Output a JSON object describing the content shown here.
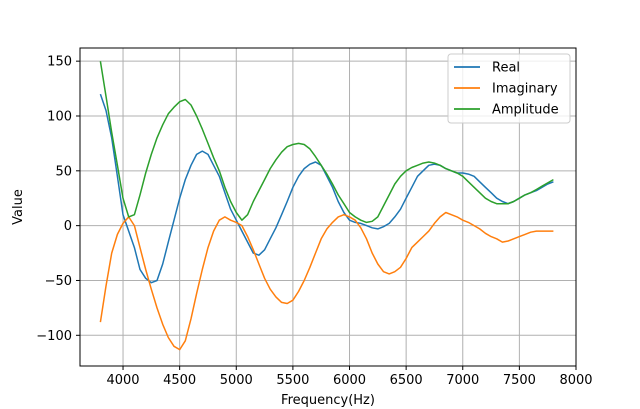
{
  "chart_data": {
    "type": "line",
    "title": "",
    "xlabel": "Frequency(Hz)",
    "ylabel": "Value",
    "xlim": [
      3620,
      8000
    ],
    "ylim": [
      -128,
      162
    ],
    "xticks": [
      4000,
      4500,
      5000,
      5500,
      6000,
      6500,
      7000,
      7500,
      8000
    ],
    "yticks": [
      -100,
      -50,
      0,
      50,
      100,
      150
    ],
    "grid": true,
    "legend_position": "top-right",
    "colors": {
      "Real": "#1f77b4",
      "Imaginary": "#ff7f0e",
      "Amplitude": "#2ca02c"
    },
    "series": [
      {
        "name": "Real",
        "x": [
          3800,
          3850,
          3900,
          3950,
          4000,
          4050,
          4100,
          4150,
          4200,
          4250,
          4300,
          4350,
          4400,
          4450,
          4500,
          4550,
          4600,
          4650,
          4700,
          4750,
          4800,
          4850,
          4900,
          4950,
          5000,
          5050,
          5100,
          5150,
          5200,
          5250,
          5300,
          5350,
          5400,
          5450,
          5500,
          5550,
          5600,
          5650,
          5700,
          5750,
          5800,
          5850,
          5900,
          5950,
          6000,
          6050,
          6100,
          6150,
          6200,
          6250,
          6300,
          6350,
          6400,
          6450,
          6500,
          6550,
          6600,
          6650,
          6700,
          6750,
          6800,
          6850,
          6900,
          6950,
          7000,
          7050,
          7100,
          7150,
          7200,
          7250,
          7300,
          7350,
          7400,
          7450,
          7500,
          7550,
          7600,
          7650,
          7700,
          7750,
          7800
        ],
        "values": [
          120,
          105,
          80,
          45,
          10,
          -5,
          -20,
          -40,
          -48,
          -52,
          -50,
          -35,
          -15,
          5,
          25,
          42,
          55,
          65,
          68,
          65,
          55,
          45,
          30,
          15,
          5,
          -5,
          -15,
          -25,
          -27,
          -22,
          -12,
          -2,
          10,
          22,
          35,
          45,
          52,
          56,
          58,
          55,
          45,
          35,
          22,
          12,
          5,
          3,
          2,
          0,
          -2,
          -3,
          -1,
          2,
          8,
          15,
          25,
          35,
          45,
          50,
          55,
          56,
          55,
          52,
          50,
          48,
          48,
          47,
          45,
          40,
          35,
          30,
          25,
          22,
          20,
          22,
          25,
          28,
          30,
          32,
          35,
          38,
          40
        ]
      },
      {
        "name": "Imaginary",
        "x": [
          3800,
          3850,
          3900,
          3950,
          4000,
          4050,
          4100,
          4150,
          4200,
          4250,
          4300,
          4350,
          4400,
          4450,
          4500,
          4550,
          4600,
          4650,
          4700,
          4750,
          4800,
          4850,
          4900,
          4950,
          5000,
          5050,
          5100,
          5150,
          5200,
          5250,
          5300,
          5350,
          5400,
          5450,
          5500,
          5550,
          5600,
          5650,
          5700,
          5750,
          5800,
          5850,
          5900,
          5950,
          6000,
          6050,
          6100,
          6150,
          6200,
          6250,
          6300,
          6350,
          6400,
          6450,
          6500,
          6550,
          6600,
          6650,
          6700,
          6750,
          6800,
          6850,
          6900,
          6950,
          7000,
          7050,
          7100,
          7150,
          7200,
          7250,
          7300,
          7350,
          7400,
          7450,
          7500,
          7550,
          7600,
          7650,
          7700,
          7750,
          7800
        ],
        "values": [
          -88,
          -55,
          -25,
          -8,
          2,
          8,
          0,
          -20,
          -40,
          -58,
          -75,
          -90,
          -102,
          -110,
          -113,
          -105,
          -85,
          -62,
          -40,
          -20,
          -5,
          5,
          8,
          5,
          3,
          0,
          -10,
          -22,
          -35,
          -48,
          -58,
          -65,
          -70,
          -71,
          -68,
          -60,
          -50,
          -38,
          -25,
          -12,
          -3,
          3,
          8,
          10,
          8,
          5,
          -2,
          -12,
          -25,
          -35,
          -42,
          -44,
          -42,
          -38,
          -30,
          -20,
          -15,
          -10,
          -5,
          2,
          8,
          12,
          10,
          8,
          5,
          3,
          0,
          -3,
          -7,
          -10,
          -12,
          -15,
          -14,
          -12,
          -10,
          -8,
          -6,
          -5,
          -5,
          -5,
          -5
        ]
      },
      {
        "name": "Amplitude",
        "x": [
          3800,
          3850,
          3900,
          3950,
          4000,
          4050,
          4100,
          4150,
          4200,
          4250,
          4300,
          4350,
          4400,
          4450,
          4500,
          4550,
          4600,
          4650,
          4700,
          4750,
          4800,
          4850,
          4900,
          4950,
          5000,
          5050,
          5100,
          5150,
          5200,
          5250,
          5300,
          5350,
          5400,
          5450,
          5500,
          5550,
          5600,
          5650,
          5700,
          5750,
          5800,
          5850,
          5900,
          5950,
          6000,
          6050,
          6100,
          6150,
          6200,
          6250,
          6300,
          6350,
          6400,
          6450,
          6500,
          6550,
          6600,
          6650,
          6700,
          6750,
          6800,
          6850,
          6900,
          6950,
          7000,
          7050,
          7100,
          7150,
          7200,
          7250,
          7300,
          7350,
          7400,
          7450,
          7500,
          7550,
          7600,
          7650,
          7700,
          7750,
          7800
        ],
        "values": [
          150,
          118,
          85,
          55,
          25,
          8,
          10,
          28,
          48,
          65,
          80,
          92,
          102,
          108,
          113,
          115,
          110,
          100,
          88,
          75,
          62,
          50,
          35,
          22,
          12,
          5,
          10,
          22,
          32,
          42,
          52,
          60,
          67,
          72,
          74,
          75,
          74,
          70,
          63,
          55,
          47,
          38,
          28,
          20,
          12,
          8,
          5,
          3,
          4,
          8,
          18,
          28,
          38,
          45,
          50,
          53,
          55,
          57,
          58,
          57,
          55,
          52,
          50,
          48,
          45,
          40,
          35,
          30,
          25,
          22,
          20,
          20,
          20,
          22,
          25,
          28,
          30,
          33,
          36,
          39,
          42
        ]
      }
    ]
  }
}
